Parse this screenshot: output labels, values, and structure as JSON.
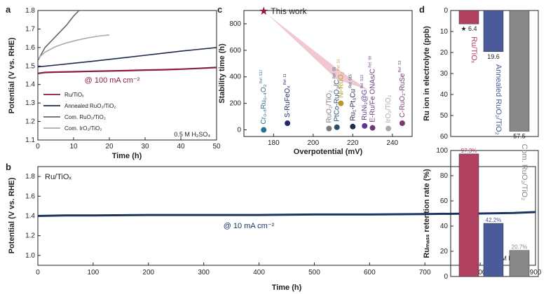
{
  "panels": {
    "a": "a",
    "b": "b",
    "c": "c",
    "d": "d"
  },
  "chart_data": [
    {
      "id": "a",
      "type": "line",
      "xlabel": "Time (h)",
      "ylabel": "Potential (V vs. RHE)",
      "xlim": [
        0,
        50
      ],
      "ylim": [
        1.1,
        1.8
      ],
      "xticks": [
        0,
        10,
        20,
        30,
        40,
        50
      ],
      "yticks": [
        1.1,
        1.2,
        1.3,
        1.4,
        1.5,
        1.6,
        1.7,
        1.8
      ],
      "annotation": "@ 100 mA cm⁻²",
      "electrolyte": "0.5 M H₂SO₄",
      "series": [
        {
          "name": "Ru/TiOₓ",
          "color": "#8a1c3c",
          "x": [
            0,
            2,
            5,
            10,
            15,
            20,
            25,
            30,
            35,
            40,
            45,
            50
          ],
          "y": [
            1.46,
            1.465,
            1.467,
            1.469,
            1.471,
            1.473,
            1.475,
            1.478,
            1.48,
            1.483,
            1.487,
            1.492
          ]
        },
        {
          "name": "Annealed RuO₂/TiO₂",
          "color": "#1c2a4a",
          "x": [
            0,
            5,
            10,
            15,
            20,
            25,
            30,
            35,
            40,
            45,
            50
          ],
          "y": [
            1.495,
            1.505,
            1.515,
            1.525,
            1.536,
            1.547,
            1.558,
            1.569,
            1.58,
            1.59,
            1.6
          ]
        },
        {
          "name": "Com. RuO₂/TiO₂",
          "color": "#666666",
          "x": [
            0,
            2,
            4,
            6,
            8,
            10,
            11.5
          ],
          "y": [
            1.53,
            1.6,
            1.64,
            1.68,
            1.72,
            1.77,
            1.8
          ]
        },
        {
          "name": "Com. IrO₂/TiO₂",
          "color": "#aaaaaa",
          "x": [
            0,
            2,
            5,
            8,
            11,
            14,
            17,
            20
          ],
          "y": [
            1.54,
            1.575,
            1.605,
            1.625,
            1.64,
            1.652,
            1.662,
            1.668
          ]
        }
      ]
    },
    {
      "id": "b",
      "type": "line",
      "xlabel": "Time (h)",
      "ylabel": "Potential (V vs. RHE)",
      "xlim": [
        0,
        900
      ],
      "ylim": [
        0.9,
        1.9
      ],
      "xticks": [
        0,
        100,
        200,
        300,
        400,
        500,
        600,
        700,
        800,
        900
      ],
      "yticks": [
        1.0,
        1.2,
        1.4,
        1.6,
        1.8
      ],
      "label": "Ru/TiOₓ",
      "annotation": "@ 10 mA cm⁻²",
      "electrolyte": "0.5 M H₂SO₄",
      "series": [
        {
          "name": "Ru/TiOₓ",
          "color": "#1c3560",
          "x": [
            0,
            50,
            100,
            200,
            300,
            400,
            500,
            600,
            700,
            800,
            860,
            900
          ],
          "y": [
            1.4,
            1.405,
            1.405,
            1.41,
            1.41,
            1.41,
            1.415,
            1.415,
            1.42,
            1.425,
            1.43,
            1.44
          ]
        }
      ]
    },
    {
      "id": "c",
      "type": "scatter",
      "xlabel": "Overpotential (mV)",
      "ylabel": "Stability time (h)",
      "xlim": [
        165,
        250
      ],
      "ylim": [
        -50,
        900
      ],
      "xticks": [
        180,
        200,
        220,
        240
      ],
      "yticks": [
        0,
        200,
        400,
        600,
        800
      ],
      "highlight": {
        "label": "This work",
        "x": 175,
        "y": 900,
        "color": "#8a1c3c"
      },
      "points": [
        {
          "label": "Cr₀.₈Ru₀.₄O₂",
          "ref": "Ref. S17",
          "x": 175,
          "y": 0,
          "color": "#2e6e8e"
        },
        {
          "label": "S-RuFeOₓ",
          "ref": "Ref. 11",
          "x": 187,
          "y": 50,
          "color": "#1e2a6e"
        },
        {
          "label": "RuO₂/TiO₂",
          "ref": "",
          "x": 208,
          "y": 10,
          "color": "#7a7a7a"
        },
        {
          "label": "PtCo-RuO₂/C",
          "ref": "Ref. S5",
          "x": 212,
          "y": 20,
          "color": "#2e4e6e"
        },
        {
          "label": "Ni-RuO₂",
          "ref": "Ref. S1",
          "x": 214,
          "y": 200,
          "color": "#b59b2e"
        },
        {
          "label": "Ru₁-Pt₃Cu",
          "ref": "Ref. S15",
          "x": 220,
          "y": 25,
          "color": "#1e2a4e"
        },
        {
          "label": "RuNi₂@G",
          "ref": "Ref. S13",
          "x": 226,
          "y": 30,
          "color": "#5a3a8e"
        },
        {
          "label": "E-Ru/Fe ONAs/C",
          "ref": "Ref. S9",
          "x": 230,
          "y": 15,
          "color": "#6e3a7e"
        },
        {
          "label": "IrO₂/TiO₂",
          "ref": "",
          "x": 238,
          "y": 10,
          "color": "#aaaaaa"
        },
        {
          "label": "C-RuO₂-RuSe",
          "ref": "Ref. S3",
          "x": 245,
          "y": 50,
          "color": "#7a3a6e"
        }
      ]
    },
    {
      "id": "d",
      "type": "bar",
      "categories": [
        "Ru/TiOₓ",
        "Annealed RuO₂/TiO₂",
        "Com. RuO₂/TiO₂"
      ],
      "colors": [
        "#b04060",
        "#4a5a9a",
        "#888888"
      ],
      "top": {
        "ylabel": "Ru ion in electrolyte (ppb)",
        "ylim": [
          0,
          60
        ],
        "yticks": [
          0,
          10,
          20,
          30,
          40,
          50,
          60
        ],
        "values": [
          6.4,
          19.6,
          57.5
        ],
        "labels": [
          "★ 6.4",
          "19.6",
          "57.5"
        ]
      },
      "bottom": {
        "ylabel": "Ruₘₐₛₛ retention rate (%)",
        "ylim": [
          0,
          100
        ],
        "yticks": [
          0,
          20,
          40,
          60,
          80,
          100
        ],
        "values": [
          97.3,
          42.2,
          20.7
        ],
        "labels": [
          "97.3%",
          "42.2%",
          "20.7%"
        ]
      }
    }
  ]
}
